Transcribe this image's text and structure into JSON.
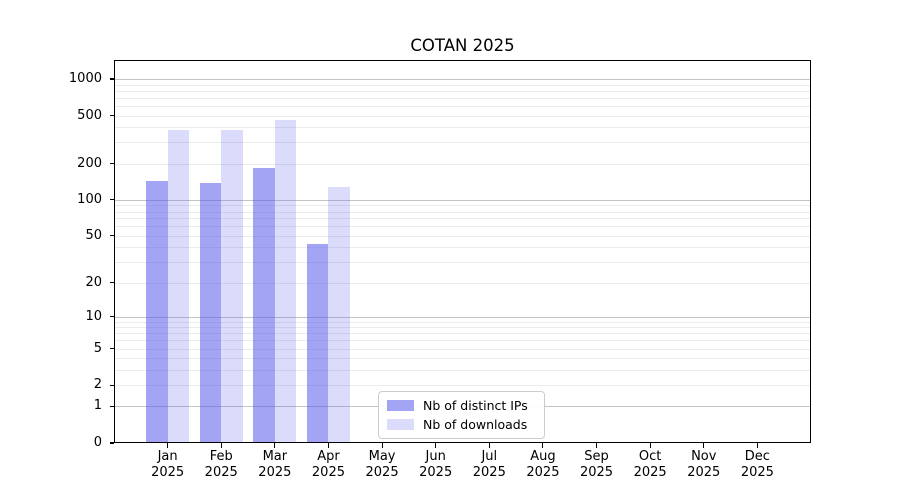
{
  "chart_data": {
    "type": "bar",
    "title": "COTAN 2025",
    "year_label": "2025",
    "categories": [
      "Jan",
      "Feb",
      "Mar",
      "Apr",
      "May",
      "Jun",
      "Jul",
      "Aug",
      "Sep",
      "Oct",
      "Nov",
      "Dec"
    ],
    "series": [
      {
        "name": "Nb of distinct IPs",
        "color": "rgba(90,90,235,0.55)",
        "color_hex": "#a4a4f4",
        "values": [
          143,
          137,
          185,
          43,
          null,
          null,
          null,
          null,
          null,
          null,
          null,
          null
        ]
      },
      {
        "name": "Nb of downloads",
        "color": "rgba(90,90,235,0.22)",
        "color_hex": "#dbdbfa",
        "values": [
          382,
          377,
          462,
          127,
          null,
          null,
          null,
          null,
          null,
          null,
          null,
          null
        ]
      }
    ],
    "y_scale": "log1p",
    "y_axis_max": 1436,
    "y_ticks": [
      0,
      1,
      2,
      5,
      10,
      20,
      50,
      100,
      200,
      500,
      1000
    ],
    "y_tick_labels": [
      "0",
      "1",
      "2",
      "5",
      "10",
      "20",
      "50",
      "100",
      "200",
      "500",
      "1000"
    ],
    "grid": {
      "major_values": [
        1,
        10,
        100,
        1000
      ],
      "major_color": "#c4c4c4",
      "minor_color": "#ebebeb"
    },
    "legend_position": "lower center-left",
    "axis_color": "#000000"
  }
}
